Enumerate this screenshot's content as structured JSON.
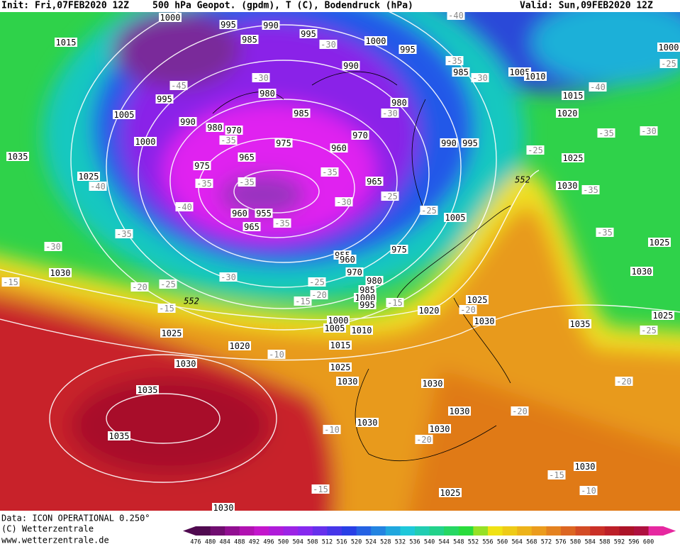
{
  "header": {
    "init": "Init: Fri,07FEB2020 12Z",
    "title": "500 hPa Geopot. (gpdm), T (C), Bodendruck (hPa)",
    "valid": "Valid: Sun,09FEB2020 12Z"
  },
  "footer": {
    "data": "Data: ICON OPERATIONAL 0.250°",
    "copyright": "(C) Wetterzentrale",
    "url": "www.wetterzentrale.de"
  },
  "colorbar": {
    "ticks": [
      476,
      480,
      484,
      488,
      492,
      496,
      500,
      504,
      508,
      512,
      516,
      520,
      524,
      528,
      532,
      536,
      540,
      544,
      548,
      552,
      556,
      560,
      564,
      568,
      572,
      576,
      580,
      584,
      588,
      592,
      596,
      600
    ]
  },
  "pressure_labels": [
    1000,
    995,
    990,
    985,
    995,
    1000,
    995,
    1015,
    995,
    1005,
    990,
    1000,
    980,
    980,
    970,
    985,
    975,
    970,
    960,
    965,
    975,
    980,
    990,
    985,
    1005,
    1010,
    1015,
    1020,
    990,
    995,
    1035,
    1025,
    1025,
    1030,
    965,
    960,
    955,
    965,
    955,
    960,
    975,
    970,
    980,
    985,
    1000,
    995,
    1005,
    1030,
    1025,
    1030,
    1025,
    1000,
    1005,
    1010,
    1020,
    1025,
    1030,
    1035,
    1015,
    1025,
    1020,
    1030,
    1025,
    1030,
    1030,
    1035,
    1035,
    1030,
    1030,
    1030,
    1030,
    1025,
    1030,
    1000
  ],
  "temperature_labels": [
    -40,
    -30,
    -45,
    -30,
    -30,
    -35,
    -40,
    -25,
    -30,
    -35,
    -35,
    -30,
    -25,
    -35,
    -35,
    -35,
    -40,
    -35,
    -30,
    -25,
    -25,
    -40,
    -35,
    -35,
    -35,
    -30,
    -30,
    -15,
    -20,
    -25,
    -25,
    -20,
    -15,
    -15,
    -20,
    -15,
    -10,
    -20,
    -20,
    -10,
    -20,
    -15,
    -10,
    -15,
    -25
  ],
  "contour_labels": [
    552,
    552
  ]
}
